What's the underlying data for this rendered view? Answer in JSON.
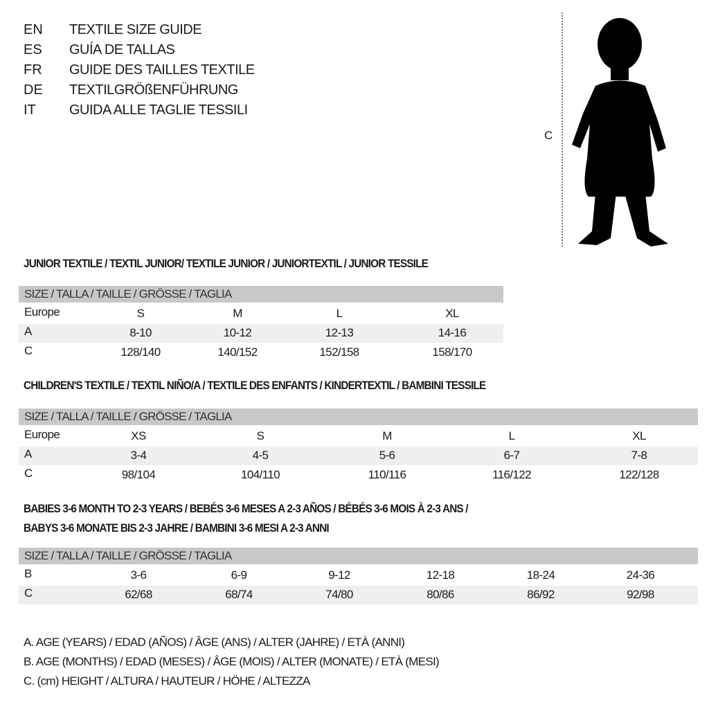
{
  "titles": [
    {
      "code": "EN",
      "text": "TEXTILE SIZE GUIDE"
    },
    {
      "code": "ES",
      "text": "GUÍA DE TALLAS"
    },
    {
      "code": "FR",
      "text": "GUIDE DES TAILLES TEXTILE"
    },
    {
      "code": "DE",
      "text": "TEXTILGRÖßENFÜHRUNG"
    },
    {
      "code": "IT",
      "text": "GUIDA ALLE TAGLIE TESSILI"
    }
  ],
  "figure": {
    "height_label": "C",
    "icon": "child-silhouette-icon"
  },
  "sections": [
    {
      "title": "JUNIOR TEXTILE / TEXTIL JUNIOR/ TEXTILE JUNIOR / JUNIORTEXTIL / JUNIOR TESSILE",
      "header": "SIZE / TALLA / TAILLE / GRÖSSE / TAGLIA",
      "rows": [
        {
          "label": "Europe",
          "values": [
            "S",
            "M",
            "L",
            "XL"
          ]
        },
        {
          "label": "A",
          "values": [
            "8-10",
            "10-12",
            "12-13",
            "14-16"
          ]
        },
        {
          "label": "C",
          "values": [
            "128/140",
            "140/152",
            "152/158",
            "158/170"
          ]
        }
      ]
    },
    {
      "title": "CHILDREN'S TEXTILE / TEXTIL NIÑO/A / TEXTILE DES ENFANTS / KINDERTEXTIL / BAMBINI TESSILE",
      "header": "SIZE / TALLA / TAILLE / GRÖSSE / TAGLIA",
      "rows": [
        {
          "label": "Europe",
          "values": [
            "XS",
            "S",
            "M",
            "L",
            "XL"
          ]
        },
        {
          "label": "A",
          "values": [
            "3-4",
            "4-5",
            "5-6",
            "6-7",
            "7-8"
          ]
        },
        {
          "label": "C",
          "values": [
            "98/104",
            "104/110",
            "110/116",
            "116/122",
            "122/128"
          ]
        }
      ]
    },
    {
      "title": "BABIES 3-6 MONTH TO 2-3 YEARS / BEBÉS 3-6 MESES A 2-3 AÑOS / BÉBÉS 3-6 MOIS À 2-3 ANS /",
      "title2": "BABYS 3-6 MONATE BIS 2-3 JAHRE / BAMBINI 3-6 MESI A 2-3 ANNI",
      "header": "SIZE / TALLA / TAILLE / GRÖSSE / TAGLIA",
      "rows": [
        {
          "label": "B",
          "values": [
            "3-6",
            "6-9",
            "9-12",
            "12-18",
            "18-24",
            "24-36"
          ]
        },
        {
          "label": "C",
          "values": [
            "62/68",
            "68/74",
            "74/80",
            "80/86",
            "86/92",
            "92/98"
          ]
        }
      ]
    }
  ],
  "legend": [
    "A. AGE (YEARS) / EDAD (AÑOS) / ÂGE (ANS) / ALTER (JAHRE) / ETÀ (ANNI)",
    "B. AGE (MONTHS) / EDAD (MESES) / ÂGE (MOIS) / ALTER (MONATE) / ETÀ (MESI)",
    "C. (cm) HEIGHT / ALTURA / HAUTEUR / HÖHE / ALTEZZA"
  ]
}
